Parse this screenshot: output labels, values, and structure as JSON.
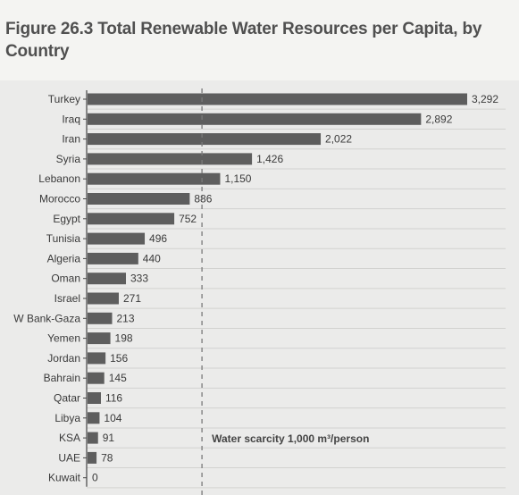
{
  "figure": {
    "title": "Figure 26.3 Total Renewable Water Resources per Capita, by Country"
  },
  "chart_data": {
    "type": "bar",
    "orientation": "horizontal",
    "categories": [
      "Turkey",
      "Iraq",
      "Iran",
      "Syria",
      "Lebanon",
      "Morocco",
      "Egypt",
      "Tunisia",
      "Algeria",
      "Oman",
      "Israel",
      "W Bank-Gaza",
      "Yemen",
      "Jordan",
      "Bahrain",
      "Qatar",
      "Libya",
      "KSA",
      "UAE",
      "Kuwait"
    ],
    "values": [
      3292,
      2892,
      2022,
      1426,
      1150,
      886,
      752,
      496,
      440,
      333,
      271,
      213,
      198,
      156,
      145,
      116,
      104,
      91,
      78,
      0
    ],
    "value_labels": [
      "3,292",
      "2,892",
      "2,022",
      "1,426",
      "1,150",
      "886",
      "752",
      "496",
      "440",
      "333",
      "271",
      "213",
      "198",
      "156",
      "145",
      "116",
      "104",
      "91",
      "78",
      "0"
    ],
    "title": "Figure 26.3 Total Renewable Water Resources per Capita, by Country",
    "xlabel": "",
    "ylabel": "",
    "xlim": [
      0,
      3292
    ],
    "bar_color": "#5e5e5e",
    "grid": true,
    "reference_line": {
      "value": 1000,
      "label": "Water scarcity 1,000 m³/person"
    }
  }
}
